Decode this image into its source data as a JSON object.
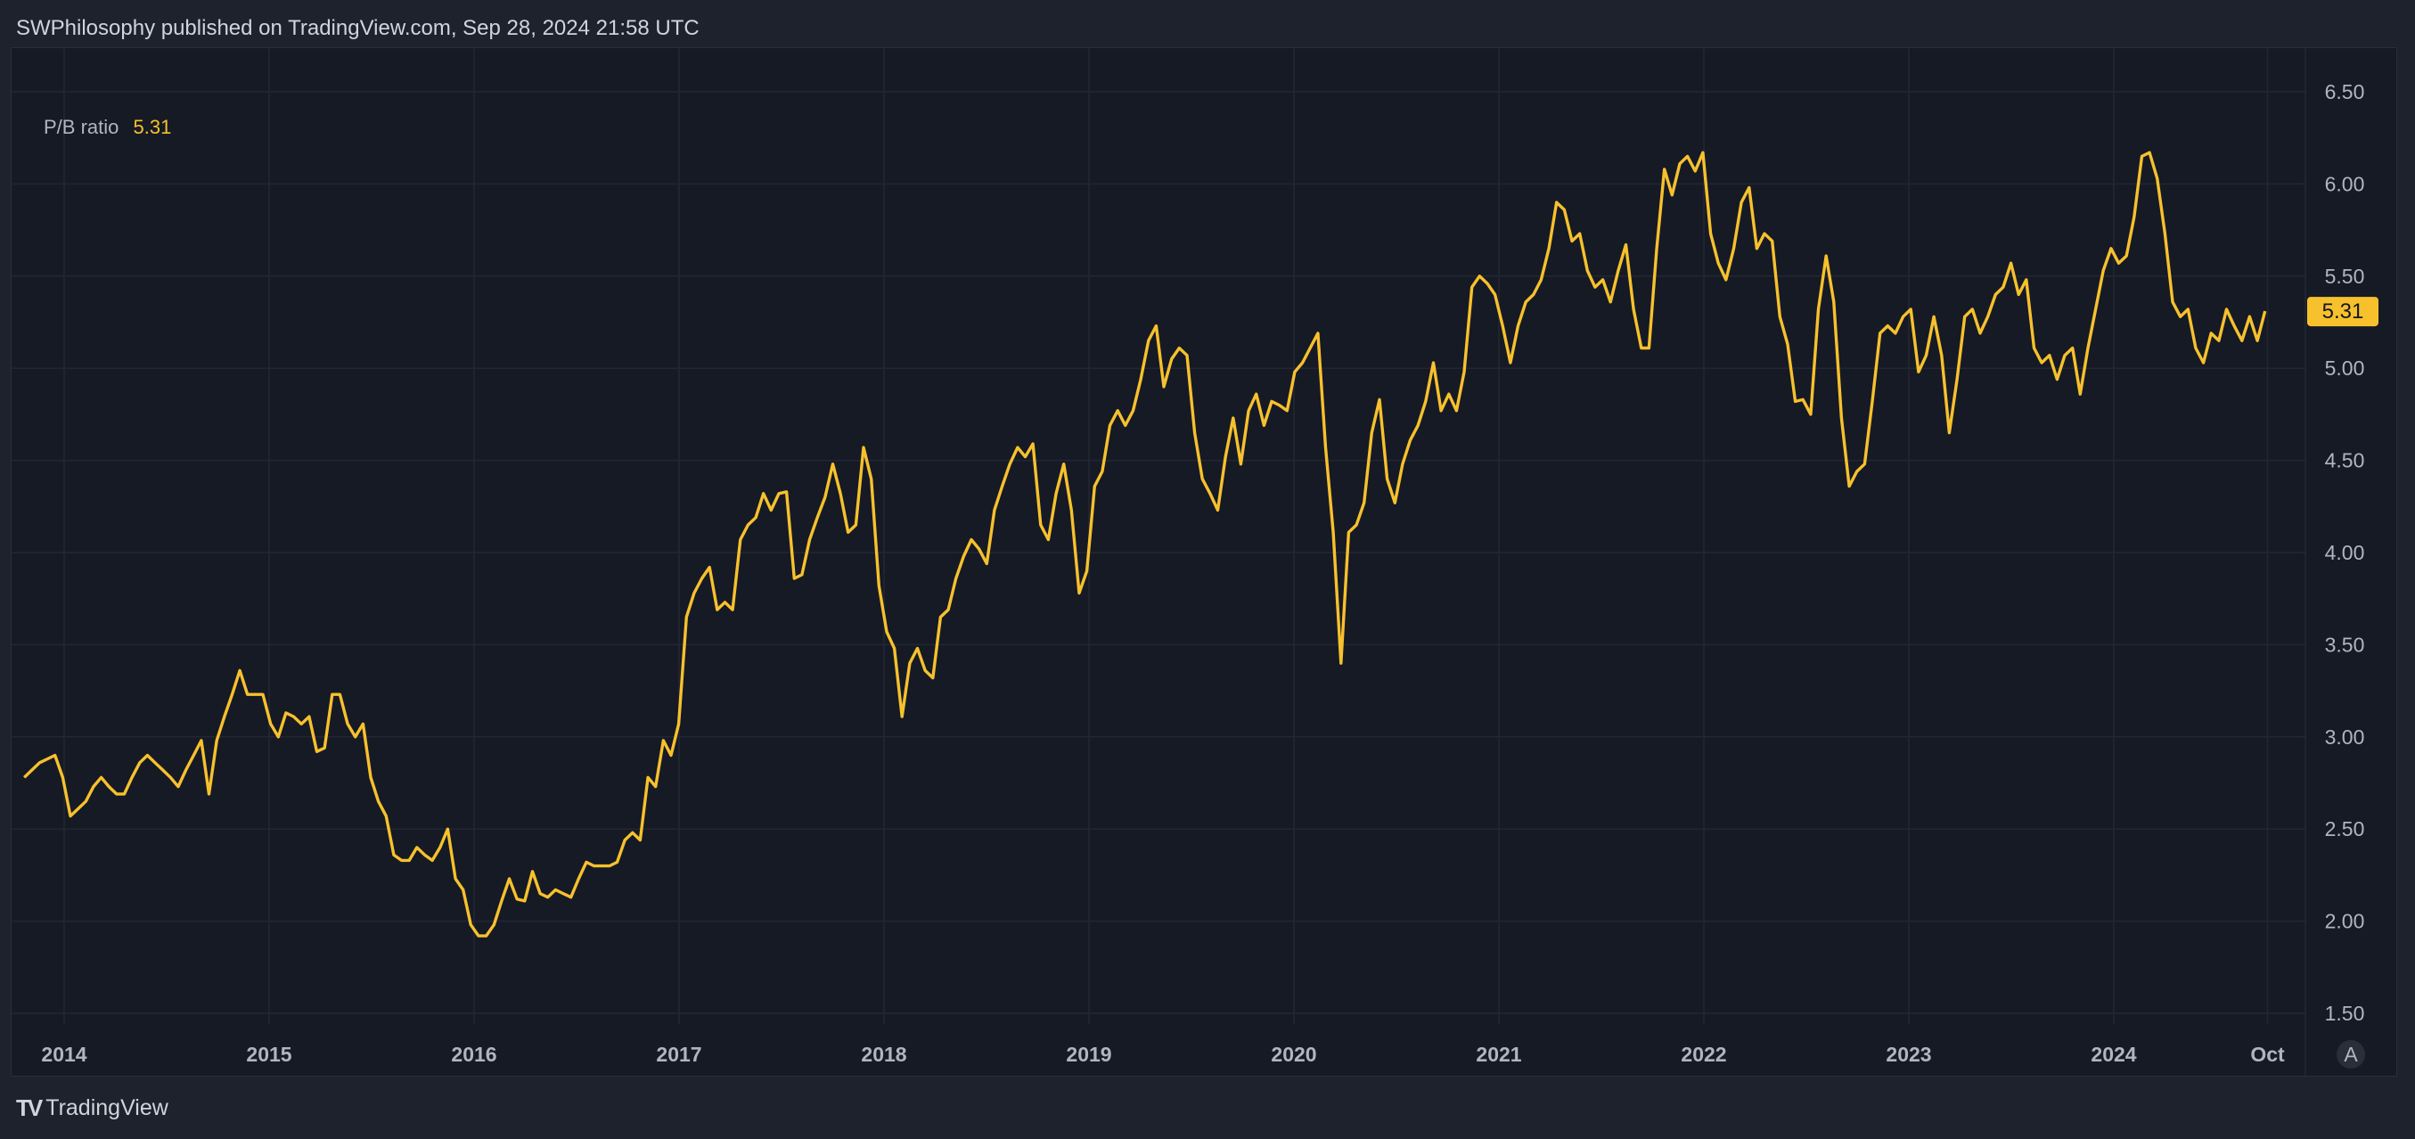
{
  "header": {
    "text": "SWPhilosophy published on TradingView.com, Sep 28, 2024 21:58 UTC"
  },
  "legend": {
    "name": "P/B ratio",
    "value": "5.31"
  },
  "footer": {
    "brand": "TradingView",
    "logo_icon": "tradingview-logo-icon"
  },
  "colors": {
    "line": "#f7c12d",
    "background": "#161a25",
    "grid": "#232733",
    "text": "#b2b5be"
  },
  "chart_data": {
    "type": "line",
    "title": "P/B ratio",
    "xlabel": "",
    "ylabel": "",
    "ylim": [
      1.5,
      6.5
    ],
    "yticks": [
      "1.50",
      "2.00",
      "2.50",
      "3.00",
      "3.50",
      "4.00",
      "4.50",
      "5.00",
      "5.50",
      "6.00",
      "6.50"
    ],
    "xticks": [
      {
        "label": "2014",
        "year": 2014
      },
      {
        "label": "2015",
        "year": 2015
      },
      {
        "label": "2016",
        "year": 2016
      },
      {
        "label": "2017",
        "year": 2017
      },
      {
        "label": "2018",
        "year": 2018
      },
      {
        "label": "2019",
        "year": 2019
      },
      {
        "label": "2020",
        "year": 2020
      },
      {
        "label": "2021",
        "year": 2021
      },
      {
        "label": "2022",
        "year": 2022
      },
      {
        "label": "2023",
        "year": 2023
      },
      {
        "label": "2024",
        "year": 2024
      },
      {
        "label": "Oct",
        "year": 2024.75
      }
    ],
    "auto_scale_label": "A",
    "last_value_label": "5.31",
    "grid": true,
    "x_start_year": 2013.805,
    "x_step_years": 0.03757,
    "series": [
      {
        "name": "P/B ratio",
        "values": [
          2.78,
          2.82,
          2.86,
          2.88,
          2.9,
          2.78,
          2.57,
          2.61,
          2.65,
          2.73,
          2.78,
          2.73,
          2.69,
          2.69,
          2.78,
          2.86,
          2.9,
          2.86,
          2.82,
          2.78,
          2.73,
          2.82,
          2.9,
          2.98,
          2.69,
          2.98,
          3.11,
          3.23,
          3.36,
          3.23,
          3.23,
          3.23,
          3.07,
          3.0,
          3.13,
          3.11,
          3.07,
          3.11,
          2.92,
          2.94,
          3.23,
          3.23,
          3.07,
          3.0,
          3.07,
          2.78,
          2.65,
          2.57,
          2.36,
          2.33,
          2.33,
          2.4,
          2.36,
          2.33,
          2.4,
          2.5,
          2.23,
          2.17,
          1.98,
          1.92,
          1.92,
          1.98,
          2.11,
          2.23,
          2.12,
          2.11,
          2.27,
          2.15,
          2.13,
          2.17,
          2.15,
          2.13,
          2.23,
          2.32,
          2.3,
          2.3,
          2.3,
          2.32,
          2.44,
          2.48,
          2.44,
          2.78,
          2.73,
          2.98,
          2.9,
          3.07,
          3.65,
          3.78,
          3.86,
          3.92,
          3.69,
          3.73,
          3.69,
          4.07,
          4.15,
          4.19,
          4.32,
          4.23,
          4.32,
          4.33,
          3.86,
          3.88,
          4.07,
          4.19,
          4.3,
          4.48,
          4.32,
          4.11,
          4.15,
          4.57,
          4.4,
          3.82,
          3.57,
          3.48,
          3.11,
          3.4,
          3.48,
          3.36,
          3.32,
          3.65,
          3.69,
          3.86,
          3.98,
          4.07,
          4.02,
          3.94,
          4.23,
          4.36,
          4.48,
          4.57,
          4.52,
          4.59,
          4.15,
          4.07,
          4.32,
          4.48,
          4.23,
          3.78,
          3.9,
          4.36,
          4.44,
          4.69,
          4.77,
          4.69,
          4.77,
          4.94,
          5.15,
          5.23,
          4.9,
          5.05,
          5.11,
          5.07,
          4.65,
          4.4,
          4.32,
          4.23,
          4.52,
          4.73,
          4.48,
          4.77,
          4.86,
          4.69,
          4.82,
          4.8,
          4.77,
          4.98,
          5.03,
          5.11,
          5.19,
          4.57,
          4.11,
          3.4,
          4.11,
          4.15,
          4.27,
          4.65,
          4.83,
          4.4,
          4.27,
          4.48,
          4.61,
          4.69,
          4.82,
          5.03,
          4.77,
          4.86,
          4.77,
          4.98,
          5.44,
          5.5,
          5.46,
          5.4,
          5.23,
          5.03,
          5.23,
          5.36,
          5.4,
          5.48,
          5.65,
          5.9,
          5.86,
          5.69,
          5.73,
          5.53,
          5.44,
          5.48,
          5.36,
          5.53,
          5.67,
          5.32,
          5.11,
          5.11,
          5.65,
          6.08,
          5.94,
          6.11,
          6.15,
          6.07,
          6.17,
          5.73,
          5.57,
          5.48,
          5.65,
          5.9,
          5.98,
          5.65,
          5.73,
          5.69,
          5.28,
          5.13,
          4.82,
          4.83,
          4.75,
          5.32,
          5.61,
          5.36,
          4.73,
          4.36,
          4.44,
          4.48,
          4.82,
          5.19,
          5.23,
          5.19,
          5.28,
          5.32,
          4.98,
          5.07,
          5.28,
          5.07,
          4.65,
          4.94,
          5.28,
          5.32,
          5.19,
          5.28,
          5.4,
          5.44,
          5.57,
          5.4,
          5.48,
          5.11,
          5.03,
          5.07,
          4.94,
          5.07,
          5.11,
          4.86,
          5.11,
          5.32,
          5.53,
          5.65,
          5.57,
          5.61,
          5.82,
          6.15,
          6.17,
          6.03,
          5.73,
          5.36,
          5.28,
          5.32,
          5.11,
          5.03,
          5.19,
          5.15,
          5.32,
          5.23,
          5.15,
          5.28,
          5.15,
          5.31
        ]
      }
    ]
  }
}
